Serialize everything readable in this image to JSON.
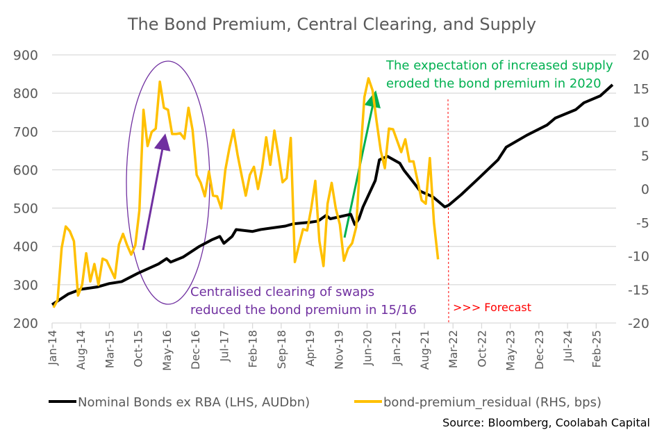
{
  "chart_data": {
    "type": "line",
    "title": "The Bond Premium, Central Clearing, and Supply",
    "source": "Source: Bloomberg, Coolabah Capital",
    "x_ticks": [
      "Jan-14",
      "Aug-14",
      "Mar-15",
      "Oct-15",
      "May-16",
      "Dec-16",
      "Jul-17",
      "Feb-18",
      "Sep-18",
      "Apr-19",
      "Nov-19",
      "Jun-20",
      "Jan-21",
      "Aug-21",
      "Mar-22",
      "Oct-22",
      "May-23",
      "Dec-23",
      "Jul-24",
      "Feb-25"
    ],
    "y_left": {
      "ticks": [
        200,
        300,
        400,
        500,
        600,
        700,
        800,
        900
      ],
      "range": [
        200,
        900
      ]
    },
    "y_right": {
      "ticks": [
        -20,
        -15,
        -10,
        -5,
        0,
        5,
        10,
        15,
        20
      ],
      "range": [
        -20,
        20
      ]
    },
    "grid": true,
    "legend_placement": "bottom",
    "series": [
      {
        "name": "Nominal Bonds ex RBA (LHS, AUDbn)",
        "axis": "left",
        "color": "#000000",
        "points": [
          [
            "Jan-14",
            248
          ],
          [
            "May-14",
            276
          ],
          [
            "Aug-14",
            288
          ],
          [
            "Dec-14",
            294
          ],
          [
            "Mar-15",
            303
          ],
          [
            "Jun-15",
            308
          ],
          [
            "Oct-15",
            330
          ],
          [
            "Mar-16",
            354
          ],
          [
            "May-16",
            368
          ],
          [
            "Jun-16",
            359
          ],
          [
            "Sep-16",
            372
          ],
          [
            "Jan-17",
            400
          ],
          [
            "Apr-17",
            417
          ],
          [
            "Jun-17",
            426
          ],
          [
            "Jul-17",
            408
          ],
          [
            "Sep-17",
            426
          ],
          [
            "Oct-17",
            444
          ],
          [
            "Feb-18",
            439
          ],
          [
            "Apr-18",
            444
          ],
          [
            "Aug-18",
            450
          ],
          [
            "Oct-18",
            453
          ],
          [
            "Dec-18",
            459
          ],
          [
            "Apr-19",
            463
          ],
          [
            "Jun-19",
            466
          ],
          [
            "Aug-19",
            481
          ],
          [
            "Sep-19",
            472
          ],
          [
            "Feb-20",
            484
          ],
          [
            "Mar-20",
            457
          ],
          [
            "Apr-20",
            472
          ],
          [
            "May-20",
            503
          ],
          [
            "Aug-20",
            572
          ],
          [
            "Sep-20",
            626
          ],
          [
            "Nov-20",
            635
          ],
          [
            "Feb-21",
            617
          ],
          [
            "Mar-21",
            599
          ],
          [
            "May-21",
            572
          ],
          [
            "Jul-21",
            544
          ],
          [
            "Oct-21",
            530
          ],
          [
            "Jan-22",
            503
          ],
          [
            "Feb-22",
            508
          ],
          [
            "May-22",
            535
          ],
          [
            "Sep-22",
            575
          ],
          [
            "Feb-23",
            626
          ],
          [
            "Apr-23",
            659
          ],
          [
            "Sep-23",
            690
          ],
          [
            "Feb-24",
            717
          ],
          [
            "Apr-24",
            735
          ],
          [
            "Sep-24",
            757
          ],
          [
            "Nov-24",
            775
          ],
          [
            "Mar-25",
            793
          ],
          [
            "Jun-25",
            822
          ]
        ]
      },
      {
        "name": "bond-premium_residual (RHS, bps)",
        "axis": "right",
        "color": "#FFC000",
        "start": "Jan-14",
        "frequency": "monthly",
        "values": [
          -17.7,
          -16.6,
          -8.8,
          -5.6,
          -6.3,
          -7.8,
          -15.9,
          -14.3,
          -9.6,
          -13.8,
          -11.2,
          -14.3,
          -10.4,
          -10.7,
          -12.0,
          -13.3,
          -8.3,
          -6.7,
          -8.4,
          -9.8,
          -8.4,
          -3.2,
          11.8,
          6.4,
          8.5,
          9.0,
          16.0,
          12.1,
          11.8,
          8.2,
          8.2,
          8.3,
          7.5,
          12.1,
          8.8,
          2.1,
          0.9,
          -1.1,
          2.6,
          -1.0,
          -1.1,
          -2.9,
          2.8,
          6.1,
          8.8,
          5.1,
          2.0,
          -1.0,
          2.1,
          3.3,
          0.0,
          3.1,
          7.7,
          3.6,
          8.7,
          5.0,
          1.0,
          1.6,
          7.6,
          -10.9,
          -8.4,
          -6.0,
          -6.2,
          -2.9,
          1.2,
          -7.8,
          -11.5,
          -2.2,
          0.9,
          -2.9,
          -5.3,
          -10.7,
          -8.9,
          -8.1,
          -5.7,
          4.7,
          13.7,
          16.5,
          14.7,
          10.0,
          5.7,
          3.1,
          9.0,
          8.9,
          7.2,
          5.5,
          7.4,
          4.1,
          4.1,
          1.2,
          -1.7,
          -2.2,
          4.6,
          -5.0,
          -10.5
        ]
      }
    ],
    "annotations": {
      "clearing_text_1": "Centralised clearing of swaps",
      "clearing_text_2": "reduced the bond premium in 15/16",
      "clearing_color": "#7030A0",
      "supply_text_1": "The expectation of increased supply",
      "supply_text_2": "eroded the bond premium in 2020",
      "supply_color": "#00B050",
      "forecast_text": ">>> Forecast",
      "forecast_start": "Jan-22",
      "forecast_color": "#FF0000"
    }
  }
}
